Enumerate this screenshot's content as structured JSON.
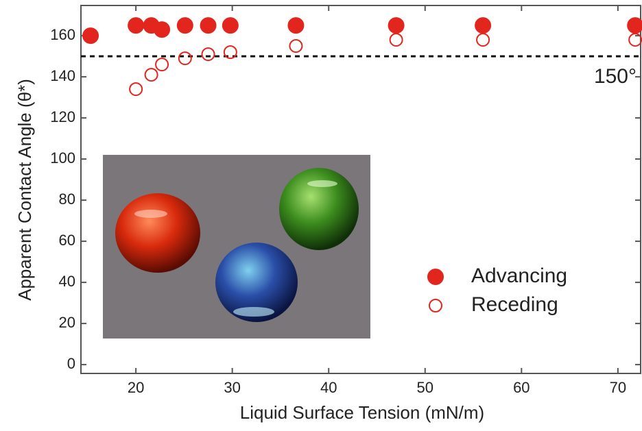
{
  "chart_data": {
    "type": "scatter",
    "x_label": "Liquid Surface Tension (mN/m)",
    "y_label": "Apparent Contact Angle (θ*)",
    "xlim": [
      14.3,
      72.5
    ],
    "ylim": [
      -4.3,
      174.7
    ],
    "xticks": [
      20,
      30,
      40,
      50,
      60,
      70
    ],
    "yticks": [
      0,
      20,
      40,
      60,
      80,
      100,
      120,
      140,
      160
    ],
    "reference_line": 150,
    "annotation": "150°",
    "legend_position": "lower right",
    "series": [
      {
        "name": "Advancing",
        "color": "#e3261d",
        "filled": true,
        "x": [
          15.3,
          20.0,
          21.6,
          22.7,
          25.1,
          27.5,
          29.8,
          36.6,
          47.0,
          56.0,
          71.8
        ],
        "values": [
          160,
          165,
          165,
          163,
          165,
          165,
          165,
          165,
          165,
          165,
          165
        ]
      },
      {
        "name": "Receding",
        "color": "#e3261d",
        "filled": false,
        "x": [
          20.0,
          21.6,
          22.7,
          25.1,
          27.5,
          29.8,
          36.6,
          47.0,
          56.0,
          71.8
        ],
        "values": [
          134,
          141,
          146,
          149,
          151,
          152,
          155,
          158,
          158,
          158
        ]
      }
    ]
  }
}
